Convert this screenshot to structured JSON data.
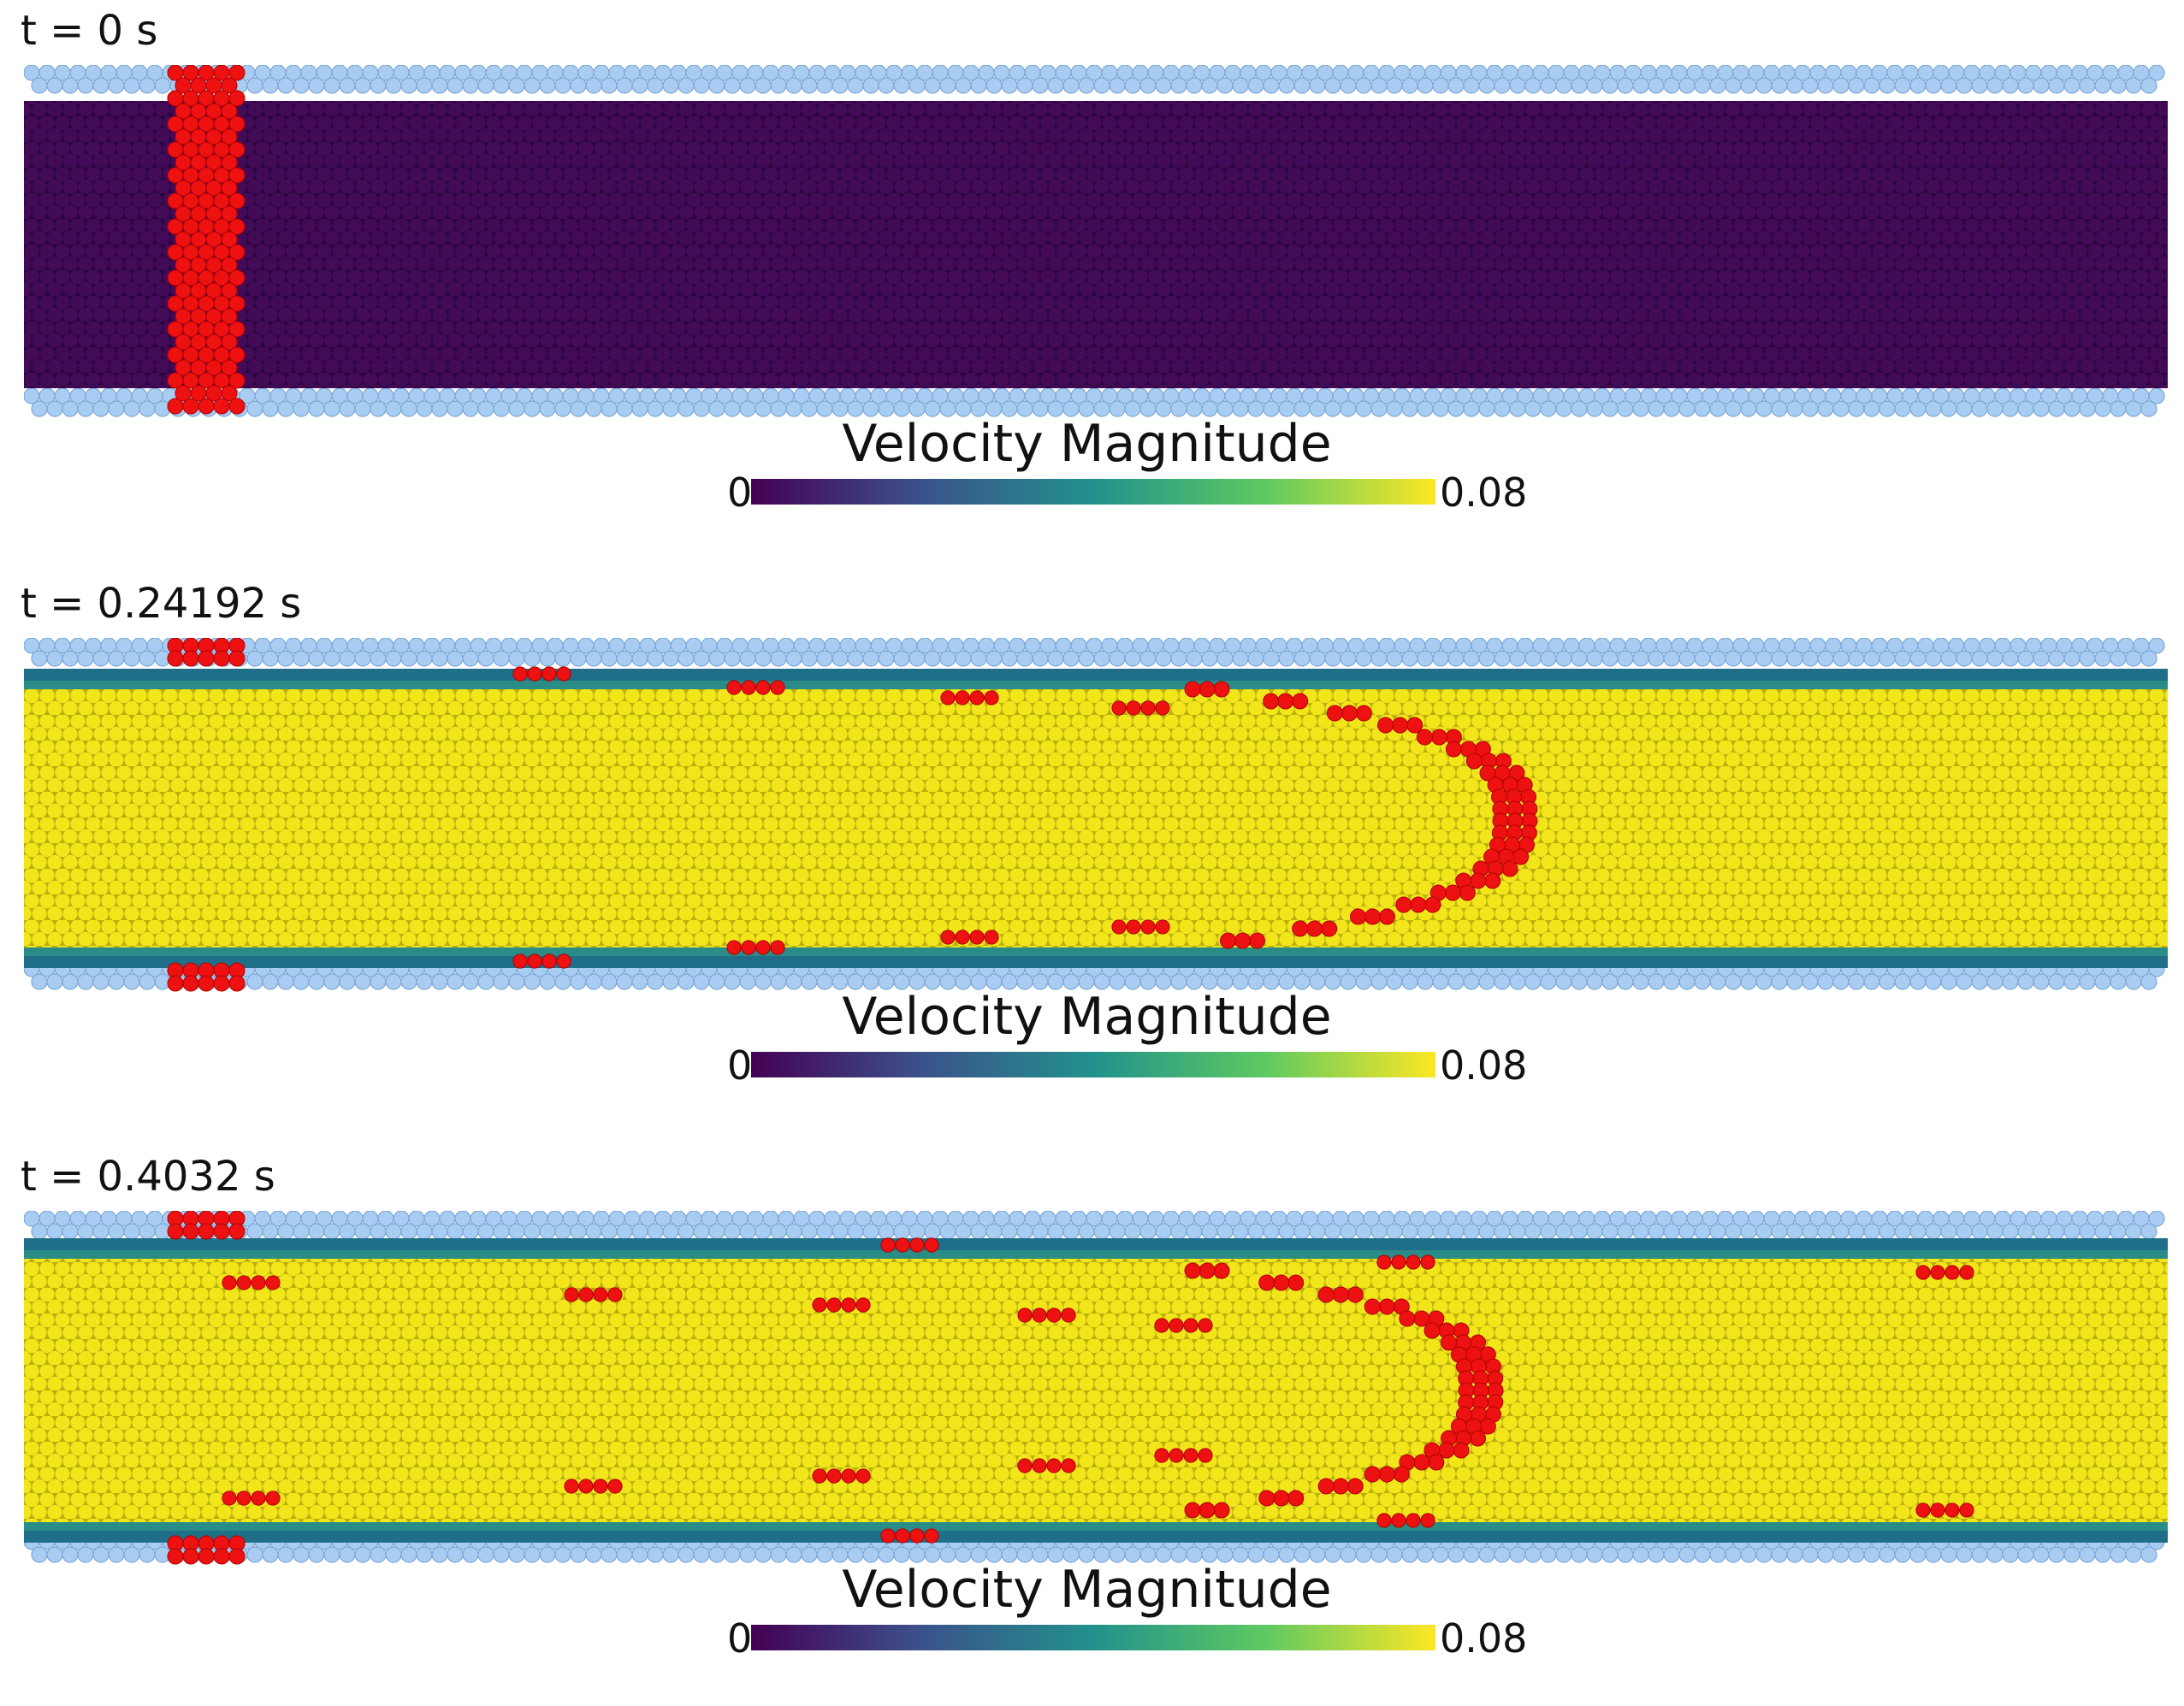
{
  "panels": [
    {
      "time_label": "t = 0 s",
      "state": "initial"
    },
    {
      "time_label": "t = 0.24192 s",
      "state": "mid"
    },
    {
      "time_label": "t = 0.4032 s",
      "state": "late"
    }
  ],
  "colorbar": {
    "title": "Velocity Magnitude",
    "min_label": "0",
    "max_label": "0.08",
    "stops": [
      "#440154",
      "#3b528b",
      "#21918c",
      "#5ec962",
      "#fde725"
    ]
  },
  "colors": {
    "wall_particles": "#a9cdf2",
    "wall_particle_edge": "#7aa7d6",
    "tracer_particles": "#ee1111",
    "fluid_rest": "#3b0a4f",
    "fluid_fast": "#f2e61a",
    "fluid_near_wall": "#2a8c86"
  }
}
